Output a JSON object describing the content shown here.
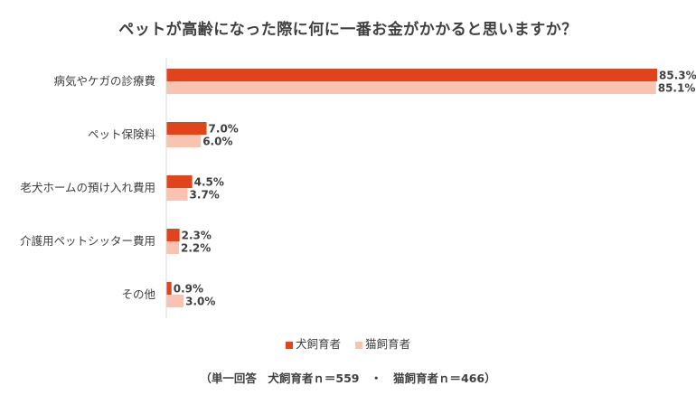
{
  "chart_data": {
    "type": "bar",
    "orientation": "horizontal",
    "title": "ペットが高齢になった際に何に一番お金がかかると思いますか？",
    "categories": [
      "病気やケガの診療費",
      "ペット保険料",
      "老犬ホームの預け入れ費用",
      "介護用ペットシッター費用",
      "その他"
    ],
    "series": [
      {
        "name": "犬飼育者",
        "color": "#e0441a",
        "values": [
          85.3,
          7.0,
          4.5,
          2.3,
          0.9
        ],
        "labels": [
          "85.3%",
          "7.0%",
          "4.5%",
          "2.3%",
          "0.9%"
        ]
      },
      {
        "name": "猫飼育者",
        "color": "#f8c3b0",
        "values": [
          85.1,
          6.0,
          3.7,
          2.2,
          3.0
        ],
        "labels": [
          "85.1%",
          "6.0%",
          "3.7%",
          "2.2%",
          "3.0%"
        ]
      }
    ],
    "xlim": [
      0,
      85.3
    ],
    "legend_position": "bottom",
    "grid": false,
    "axis_line": "#d9d9d9"
  },
  "footnote": "（単一回答　犬飼育者ｎ＝559　・　猫飼育者ｎ＝466）"
}
